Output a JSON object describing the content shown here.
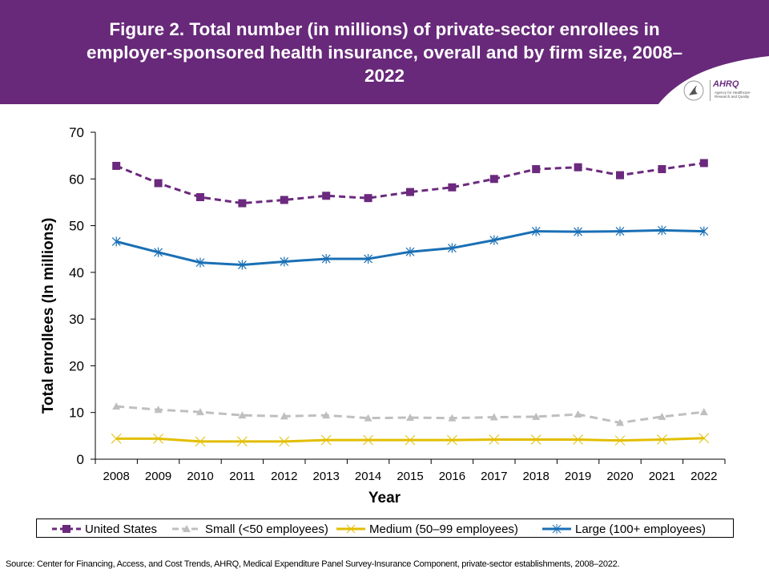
{
  "header": {
    "title": "Figure 2. Total number (in millions) of private-sector enrollees in employer-sponsored health insurance, overall and by firm size, 2008–2022",
    "logo_text": "AHRQ",
    "logo_subtext": "Agency for Healthcare Research and Quality",
    "background_color": "#68297a"
  },
  "source": "Source: Center for Financing, Access, and Cost Trends, AHRQ, Medical Expenditure Panel Survey-Insurance Component, private-sector establishments, 2008–2022.",
  "chart_data": {
    "type": "line",
    "title": "Figure 2. Total number (in millions) of private-sector enrollees in employer-sponsored health insurance, overall and by firm size, 2008–2022",
    "xlabel": "Year",
    "ylabel": "Total enrollees (In millions)",
    "ylim": [
      0,
      70
    ],
    "yticks": [
      0,
      10,
      20,
      30,
      40,
      50,
      60,
      70
    ],
    "grid": false,
    "legend_position": "bottom",
    "categories": [
      "2008",
      "2009",
      "2010",
      "2011",
      "2012",
      "2013",
      "2014",
      "2015",
      "2016",
      "2017",
      "2018",
      "2019",
      "2020",
      "2021",
      "2022"
    ],
    "series": [
      {
        "name": "United States",
        "color": "#6b2a7e",
        "style": "dashed",
        "marker": "square",
        "values": [
          62.8,
          59.1,
          56.1,
          54.8,
          55.5,
          56.4,
          55.9,
          57.2,
          58.2,
          60.0,
          62.1,
          62.5,
          60.8,
          62.1,
          63.4
        ]
      },
      {
        "name": "Small (<50 employees)",
        "color": "#bfbfbf",
        "style": "dashed",
        "marker": "triangle",
        "values": [
          11.3,
          10.6,
          10.1,
          9.4,
          9.2,
          9.4,
          8.8,
          8.9,
          8.8,
          9.0,
          9.1,
          9.6,
          7.8,
          9.1,
          10.1
        ]
      },
      {
        "name": "Medium (50–99 employees)",
        "color": "#e2be00",
        "style": "solid",
        "marker": "x",
        "values": [
          4.4,
          4.4,
          3.8,
          3.8,
          3.8,
          4.1,
          4.1,
          4.1,
          4.1,
          4.2,
          4.2,
          4.2,
          4.0,
          4.2,
          4.5
        ]
      },
      {
        "name": "Large (100+ employees)",
        "color": "#1a6fb5",
        "style": "solid",
        "marker": "asterisk",
        "values": [
          46.6,
          44.3,
          42.1,
          41.6,
          42.3,
          42.9,
          42.9,
          44.4,
          45.2,
          46.9,
          48.8,
          48.7,
          48.8,
          49.0,
          48.8
        ]
      }
    ]
  }
}
